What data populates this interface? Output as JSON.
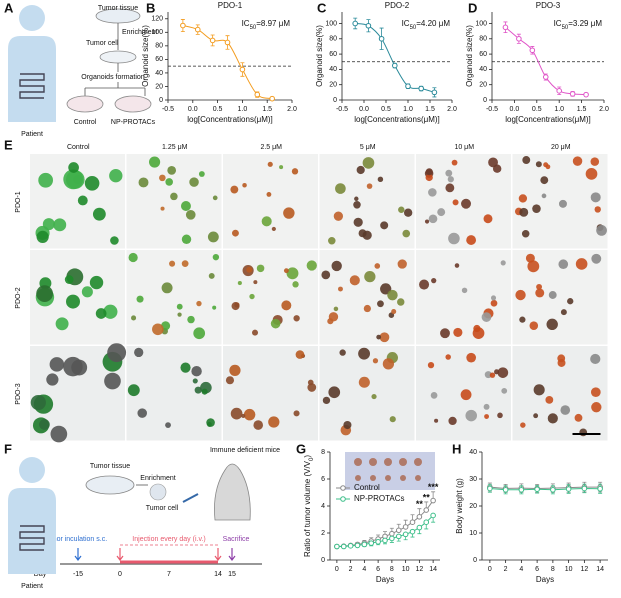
{
  "panel_labels": [
    "A",
    "B",
    "C",
    "D",
    "E",
    "F",
    "G",
    "H"
  ],
  "scheme_a": {
    "tumor_tissue": "Tumor tissue",
    "enrichment": "Enrichment",
    "tumor_cell": "Tumor cell",
    "organoids": "Organoids formation",
    "control": "Control",
    "treatment": "NP-PROTACs",
    "patient": "Patient"
  },
  "dose_response": [
    {
      "type": "line",
      "title": "PDO-1",
      "annotation": [
        "IC",
        "50",
        "=8.97 μM"
      ],
      "x_label": "log[Concentrations(μM)]",
      "y_label": "Organoid size(%)",
      "line_style": "smooth",
      "hline": 50,
      "x": [
        -0.2,
        0.1,
        0.4,
        0.7,
        1.0,
        1.3,
        1.6
      ],
      "series": [
        {
          "color": "#f39c1f",
          "values": [
            110,
            104,
            88,
            85,
            45,
            8,
            2
          ],
          "errors": [
            9,
            7,
            8,
            10,
            10,
            4,
            2
          ],
          "error_side": "both"
        }
      ],
      "xlim": [
        -0.5,
        2
      ],
      "ylim": [
        0,
        130
      ],
      "xticks": [
        -0.5,
        {
          "value": 0,
          "label": "0.0"
        },
        0.5,
        {
          "value": 1,
          "label": "1.0"
        },
        1.5,
        {
          "value": 2,
          "label": "2.0"
        }
      ],
      "yticks": [
        0,
        20,
        40,
        60,
        80,
        100,
        120
      ]
    },
    {
      "type": "line",
      "title": "PDO-2",
      "annotation": [
        "IC",
        "50",
        "=4.20 μM"
      ],
      "x_label": "log[Concentrations(μM)]",
      "y_label": "Organoid size(%)",
      "line_style": "smooth",
      "hline": 50,
      "x": [
        -0.2,
        0.1,
        0.4,
        0.7,
        1.0,
        1.3,
        1.6
      ],
      "series": [
        {
          "color": "#2a8a9a",
          "values": [
            100,
            97,
            80,
            45,
            18,
            15,
            10
          ],
          "errors": [
            7,
            8,
            14,
            3,
            3,
            3,
            6
          ],
          "error_side": "both"
        }
      ],
      "xlim": [
        -0.5,
        2
      ],
      "ylim": [
        0,
        115
      ],
      "xticks": [
        -0.5,
        {
          "value": 0,
          "label": "0.0"
        },
        0.5,
        {
          "value": 1,
          "label": "1.0"
        },
        1.5,
        {
          "value": 2,
          "label": "2.0"
        }
      ],
      "yticks": [
        0,
        20,
        40,
        60,
        80,
        100
      ]
    },
    {
      "type": "line",
      "title": "PDO-3",
      "annotation": [
        "IC",
        "50",
        "=3.29 μM"
      ],
      "x_label": "log[Concentrations(μM)]",
      "y_label": "Organoid size(%)",
      "line_style": "smooth",
      "hline": 50,
      "x": [
        -0.2,
        0.1,
        0.4,
        0.7,
        1.0,
        1.3,
        1.6
      ],
      "series": [
        {
          "color": "#e055c8",
          "values": [
            95,
            80,
            65,
            30,
            12,
            8,
            7
          ],
          "errors": [
            7,
            6,
            5,
            4,
            5,
            3,
            2
          ],
          "error_side": "both"
        }
      ],
      "xlim": [
        -0.5,
        2
      ],
      "ylim": [
        0,
        115
      ],
      "xticks": [
        -0.5,
        {
          "value": 0,
          "label": "0.0"
        },
        0.5,
        {
          "value": 1,
          "label": "1.0"
        },
        1.5,
        {
          "value": 2,
          "label": "2.0"
        }
      ],
      "yticks": [
        0,
        20,
        40,
        60,
        80,
        100
      ]
    }
  ],
  "organoids": {
    "columns": [
      "Control",
      "1.25 μM",
      "2.5 μM",
      "5 μM",
      "10 μM",
      "20 μM"
    ],
    "rows": [
      "PDO-1",
      "PDO-2",
      "PDO-3"
    ]
  },
  "scheme_f": {
    "tumor_tissue": "Tumor tissue",
    "enrichment": "Enrichment",
    "tumor_cell": "Tumor cell",
    "mice": "Immune deficient mice",
    "patient": "Patient",
    "day_label": "Day",
    "days": [
      -15,
      0,
      7,
      14,
      15
    ],
    "inoculation": "Tumor inculation s.c.",
    "injection": "Injection every day (i.v.)",
    "sacrifice": "Sacrifice"
  },
  "tumor_volume": {
    "type": "line",
    "x_label": "Days",
    "y_label": [
      "Ratio of tumor volume (V/V",
      "0",
      ")"
    ],
    "line_style": "straight",
    "legend": "upper-left",
    "x": [
      0,
      1,
      2,
      3,
      4,
      5,
      6,
      7,
      8,
      9,
      10,
      11,
      12,
      13,
      14
    ],
    "series": [
      {
        "name": "Control",
        "color": "#8a8a8a",
        "values": [
          1,
          1.02,
          1.08,
          1.15,
          1.25,
          1.4,
          1.55,
          1.75,
          1.95,
          2.2,
          2.45,
          2.8,
          3.2,
          3.7,
          4.4
        ],
        "errors": [
          0.05,
          0.08,
          0.12,
          0.15,
          0.2,
          0.25,
          0.3,
          0.35,
          0.4,
          0.45,
          0.5,
          0.55,
          0.6,
          0.6,
          0.65
        ],
        "error_side": "up"
      },
      {
        "name": "NP-PROTACs",
        "color": "#3dbf8a",
        "values": [
          1,
          1,
          1.05,
          1.08,
          1.15,
          1.25,
          1.35,
          1.45,
          1.6,
          1.75,
          1.9,
          2.1,
          2.4,
          2.8,
          3.3
        ],
        "errors": [
          0.05,
          0.08,
          0.1,
          0.12,
          0.15,
          0.2,
          0.22,
          0.25,
          0.3,
          0.35,
          0.4,
          0.4,
          0.45,
          0.5,
          0.5
        ],
        "error_side": "down"
      }
    ],
    "significance": [
      {
        "x": 12,
        "label": "**"
      },
      {
        "x": 13,
        "label": "**"
      },
      {
        "x": 14,
        "label": "***"
      }
    ],
    "xlim": [
      -1,
      15
    ],
    "ylim": [
      0,
      8
    ],
    "xticks": [
      0,
      2,
      4,
      6,
      8,
      10,
      12,
      14
    ],
    "yticks": [
      0,
      2,
      4,
      6,
      8
    ]
  },
  "body_weight": {
    "type": "line",
    "x_label": "Days",
    "y_label": [
      "Body weight (g)"
    ],
    "line_style": "straight",
    "x": [
      0,
      2,
      4,
      6,
      8,
      10,
      12,
      14
    ],
    "series": [
      {
        "name": "Control",
        "color": "#8a8a8a",
        "values": [
          27,
          26.5,
          26.6,
          26.5,
          26.6,
          26.8,
          27,
          27
        ],
        "errors": [
          1.5,
          1.5,
          1.6,
          1.5,
          1.6,
          1.7,
          1.8,
          1.8
        ],
        "error_side": "both"
      },
      {
        "name": "NP-PROTACs",
        "color": "#3dbf8a",
        "values": [
          26.5,
          26,
          26,
          26.2,
          26,
          26.3,
          26.5,
          26.4
        ],
        "errors": [
          1.4,
          1.5,
          1.5,
          1.4,
          1.5,
          1.6,
          1.6,
          1.7
        ],
        "error_side": "both"
      }
    ],
    "xlim": [
      -1,
      15
    ],
    "ylim": [
      0,
      40
    ],
    "xticks": [
      0,
      2,
      4,
      6,
      8,
      10,
      12,
      14
    ],
    "yticks": [
      0,
      10,
      20,
      30,
      40
    ]
  }
}
